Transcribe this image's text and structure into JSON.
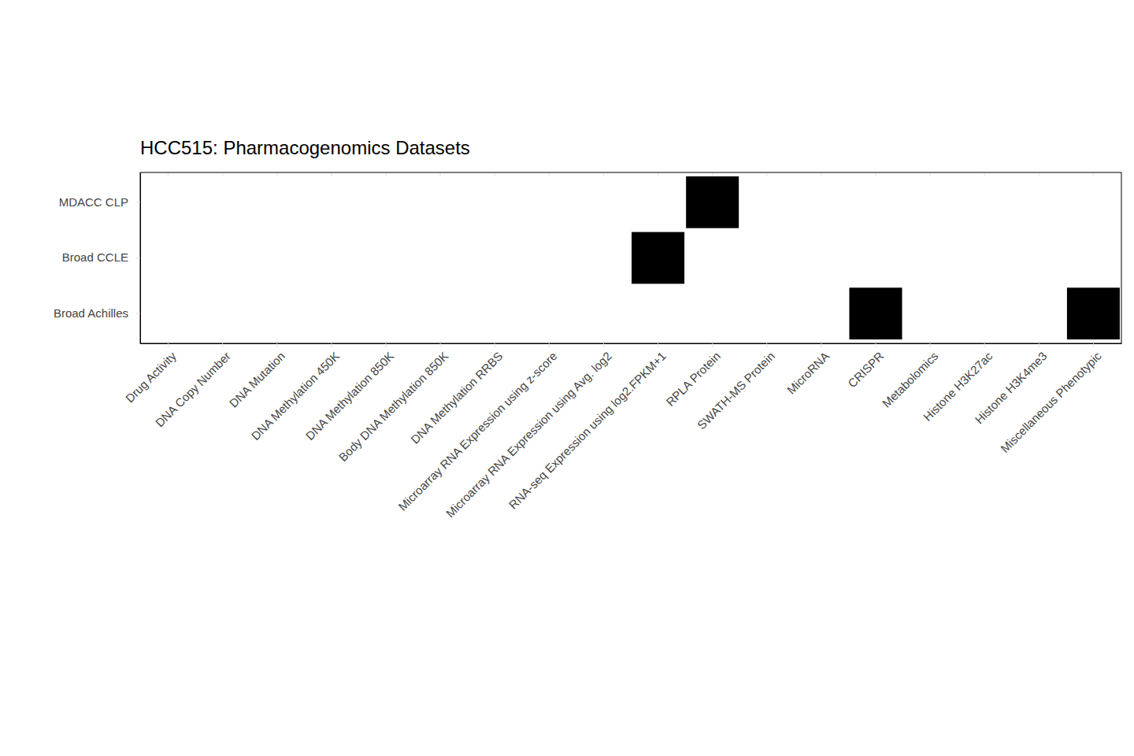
{
  "chart_data": {
    "type": "heatmap",
    "title": "HCC515: Pharmacogenomics Datasets",
    "x": [
      "Drug Activity",
      "DNA Copy Number",
      "DNA Mutation",
      "DNA Methylation 450K",
      "DNA Methylation 850K",
      "Body DNA Methylation 850K",
      "DNA Methylation RRBS",
      "Microarray RNA Expression using z-score",
      "Microarray RNA Expression using Avg. log2",
      "RNA-seq Expression using log2.FPKM+1",
      "RPLA Protein",
      "SWATH-MS Protein",
      "MicroRNA",
      "CRISPR",
      "Metabolomics",
      "Histone H3K27ac",
      "Histone H3K4me3",
      "Miscellaneous Phenotypic"
    ],
    "y": [
      "MDACC CLP",
      "Broad CCLE",
      "Broad Achilles"
    ],
    "values": [
      [
        0,
        0,
        0,
        0,
        0,
        0,
        0,
        0,
        0,
        0,
        1,
        0,
        0,
        0,
        0,
        0,
        0,
        0
      ],
      [
        0,
        0,
        0,
        0,
        0,
        0,
        0,
        0,
        0,
        1,
        0,
        0,
        0,
        0,
        0,
        0,
        0,
        0
      ],
      [
        0,
        0,
        0,
        0,
        0,
        0,
        0,
        0,
        0,
        0,
        0,
        0,
        0,
        1,
        0,
        0,
        0,
        1
      ]
    ],
    "color": "#000000"
  }
}
